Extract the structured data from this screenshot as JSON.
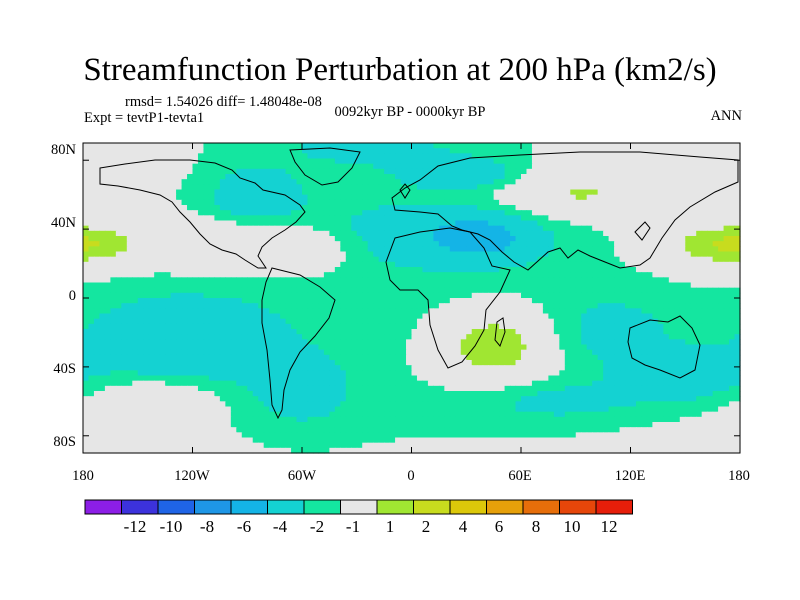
{
  "title": "Streamfunction Perturbation at 200 hPa (km2/s)",
  "stats_text": "rmsd= 1.54026 diff= 1.48048e-08",
  "experiment_text": "Expt = tevtP1-tevta1",
  "period_text": "0092kyr BP - 0000kyr BP",
  "season_text": "ANN",
  "lat_ticks": [
    "80N",
    "40N",
    "0",
    "40S",
    "80S"
  ],
  "lon_ticks": [
    "180",
    "120W",
    "60W",
    "0",
    "60E",
    "120E",
    "180"
  ],
  "colorbar": {
    "labels": [
      "-12",
      "-10",
      "-8",
      "-6",
      "-4",
      "-2",
      "-1",
      "1",
      "2",
      "4",
      "6",
      "8",
      "10",
      "12"
    ],
    "colors": [
      "#8c1ee6",
      "#3c32dc",
      "#1f64e6",
      "#1e96e6",
      "#14b4e6",
      "#14d2d2",
      "#14e6a0",
      "#e6e6e6",
      "#a0e632",
      "#c8dc1e",
      "#dcc80a",
      "#e6a00a",
      "#e66e0a",
      "#e6460a",
      "#e61e0a"
    ]
  },
  "chart_data": {
    "type": "heatmap",
    "title": "Streamfunction Perturbation at 200 hPa (km2/s)",
    "variable": "Streamfunction Perturbation",
    "level": "200 hPa",
    "units": "km2/s",
    "xlabel": "",
    "ylabel": "",
    "xlim": [
      -180,
      180
    ],
    "ylim": [
      -90,
      90
    ],
    "x_ticks": [
      -180,
      -120,
      -60,
      0,
      60,
      120,
      180
    ],
    "y_ticks": [
      80,
      40,
      0,
      -40,
      -80
    ],
    "levels": [
      -12,
      -10,
      -8,
      -6,
      -4,
      -2,
      -1,
      1,
      2,
      4,
      6,
      8,
      10,
      12
    ],
    "features": [
      {
        "lon": -8,
        "lat": 0,
        "value": -1.5,
        "sx": 170,
        "sy": 90
      },
      {
        "lon": 12,
        "lat": 38,
        "value": -1.5,
        "sx": 50,
        "sy": 14
      },
      {
        "lon": 38,
        "lat": 35,
        "value": -2.8,
        "sx": 20,
        "sy": 9
      },
      {
        "lon": -25,
        "lat": 88,
        "value": -1.5,
        "sx": 45,
        "sy": 10
      },
      {
        "lon": 28,
        "lat": 72,
        "value": -2.4,
        "sx": 22,
        "sy": 6
      },
      {
        "lon": -85,
        "lat": 60,
        "value": -2.7,
        "sx": 16,
        "sy": 10
      },
      {
        "lon": 90,
        "lat": 60,
        "value": 2.2,
        "sx": 32,
        "sy": 11
      },
      {
        "lon": 160,
        "lat": 30,
        "value": 1.8,
        "sx": 25,
        "sy": 9
      },
      {
        "lon": -175,
        "lat": 32,
        "value": 1.8,
        "sx": 20,
        "sy": 9
      },
      {
        "lon": -110,
        "lat": 30,
        "value": 2.0,
        "sx": 28,
        "sy": 10
      },
      {
        "lon": -60,
        "lat": 28,
        "value": 2.0,
        "sx": 20,
        "sy": 10
      },
      {
        "lon": 45,
        "lat": -28,
        "value": 3.2,
        "sx": 24,
        "sy": 16
      },
      {
        "lon": -130,
        "lat": -25,
        "value": -2.6,
        "sx": 38,
        "sy": 18
      },
      {
        "lon": -140,
        "lat": -60,
        "value": 2.0,
        "sx": 22,
        "sy": 9
      },
      {
        "lon": -60,
        "lat": -55,
        "value": -1.6,
        "sx": 20,
        "sy": 15
      },
      {
        "lon": 80,
        "lat": -60,
        "value": -1.5,
        "sx": 38,
        "sy": 9
      },
      {
        "lon": 150,
        "lat": -45,
        "value": -2.5,
        "sx": 22,
        "sy": 10
      },
      {
        "lon": 110,
        "lat": -20,
        "value": -1.5,
        "sx": 25,
        "sy": 15
      }
    ],
    "colorbar_labels": [
      "-12",
      "-10",
      "-8",
      "-6",
      "-4",
      "-2",
      "-1",
      "1",
      "2",
      "4",
      "6",
      "8",
      "10",
      "12"
    ]
  }
}
